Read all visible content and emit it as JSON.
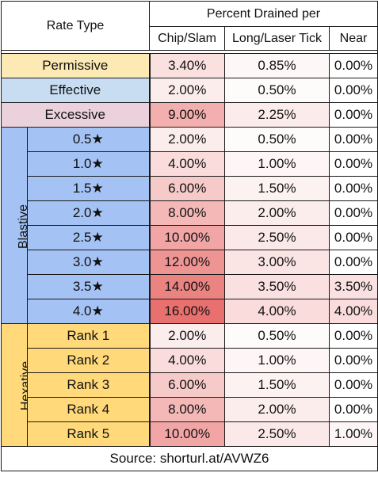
{
  "header": {
    "rate_type": "Rate Type",
    "percent_drained_per": "Percent Drained per",
    "col_chip": "Chip/Slam",
    "col_long": "Long/Laser Tick",
    "col_near": "Near"
  },
  "simple_rows": [
    {
      "label": "Permissive",
      "chip": "3.40%",
      "long": "0.85%",
      "near": "0.00%"
    },
    {
      "label": "Effective",
      "chip": "2.00%",
      "long": "0.50%",
      "near": "0.00%"
    },
    {
      "label": "Excessive",
      "chip": "9.00%",
      "long": "2.25%",
      "near": "0.00%"
    }
  ],
  "groups": [
    {
      "name": "Blastive",
      "rows": [
        {
          "label": "0.5★",
          "chip": "2.00%",
          "long": "0.50%",
          "near": "0.00%"
        },
        {
          "label": "1.0★",
          "chip": "4.00%",
          "long": "1.00%",
          "near": "0.00%"
        },
        {
          "label": "1.5★",
          "chip": "6.00%",
          "long": "1.50%",
          "near": "0.00%"
        },
        {
          "label": "2.0★",
          "chip": "8.00%",
          "long": "2.00%",
          "near": "0.00%"
        },
        {
          "label": "2.5★",
          "chip": "10.00%",
          "long": "2.50%",
          "near": "0.00%"
        },
        {
          "label": "3.0★",
          "chip": "12.00%",
          "long": "3.00%",
          "near": "0.00%"
        },
        {
          "label": "3.5★",
          "chip": "14.00%",
          "long": "3.50%",
          "near": "3.50%"
        },
        {
          "label": "4.0★",
          "chip": "16.00%",
          "long": "4.00%",
          "near": "4.00%"
        }
      ]
    },
    {
      "name": "Hexative",
      "rows": [
        {
          "label": "Rank 1",
          "chip": "2.00%",
          "long": "0.50%",
          "near": "0.00%"
        },
        {
          "label": "Rank 2",
          "chip": "4.00%",
          "long": "1.00%",
          "near": "0.00%"
        },
        {
          "label": "Rank 3",
          "chip": "6.00%",
          "long": "1.50%",
          "near": "0.00%"
        },
        {
          "label": "Rank 4",
          "chip": "8.00%",
          "long": "2.00%",
          "near": "0.00%"
        },
        {
          "label": "Rank 5",
          "chip": "10.00%",
          "long": "2.50%",
          "near": "1.00%"
        }
      ]
    }
  ],
  "source": "Source: shorturl.at/AVWZ6",
  "colors": {
    "permissive": "#fde9b4",
    "effective": "#c9ddf2",
    "excessive": "#ead1dc",
    "blastive": "#a4c2f4",
    "hexative": "#ffd97a",
    "heat_low": "#ffffff",
    "heat_high": "#e8716f",
    "heat_max": 16
  }
}
